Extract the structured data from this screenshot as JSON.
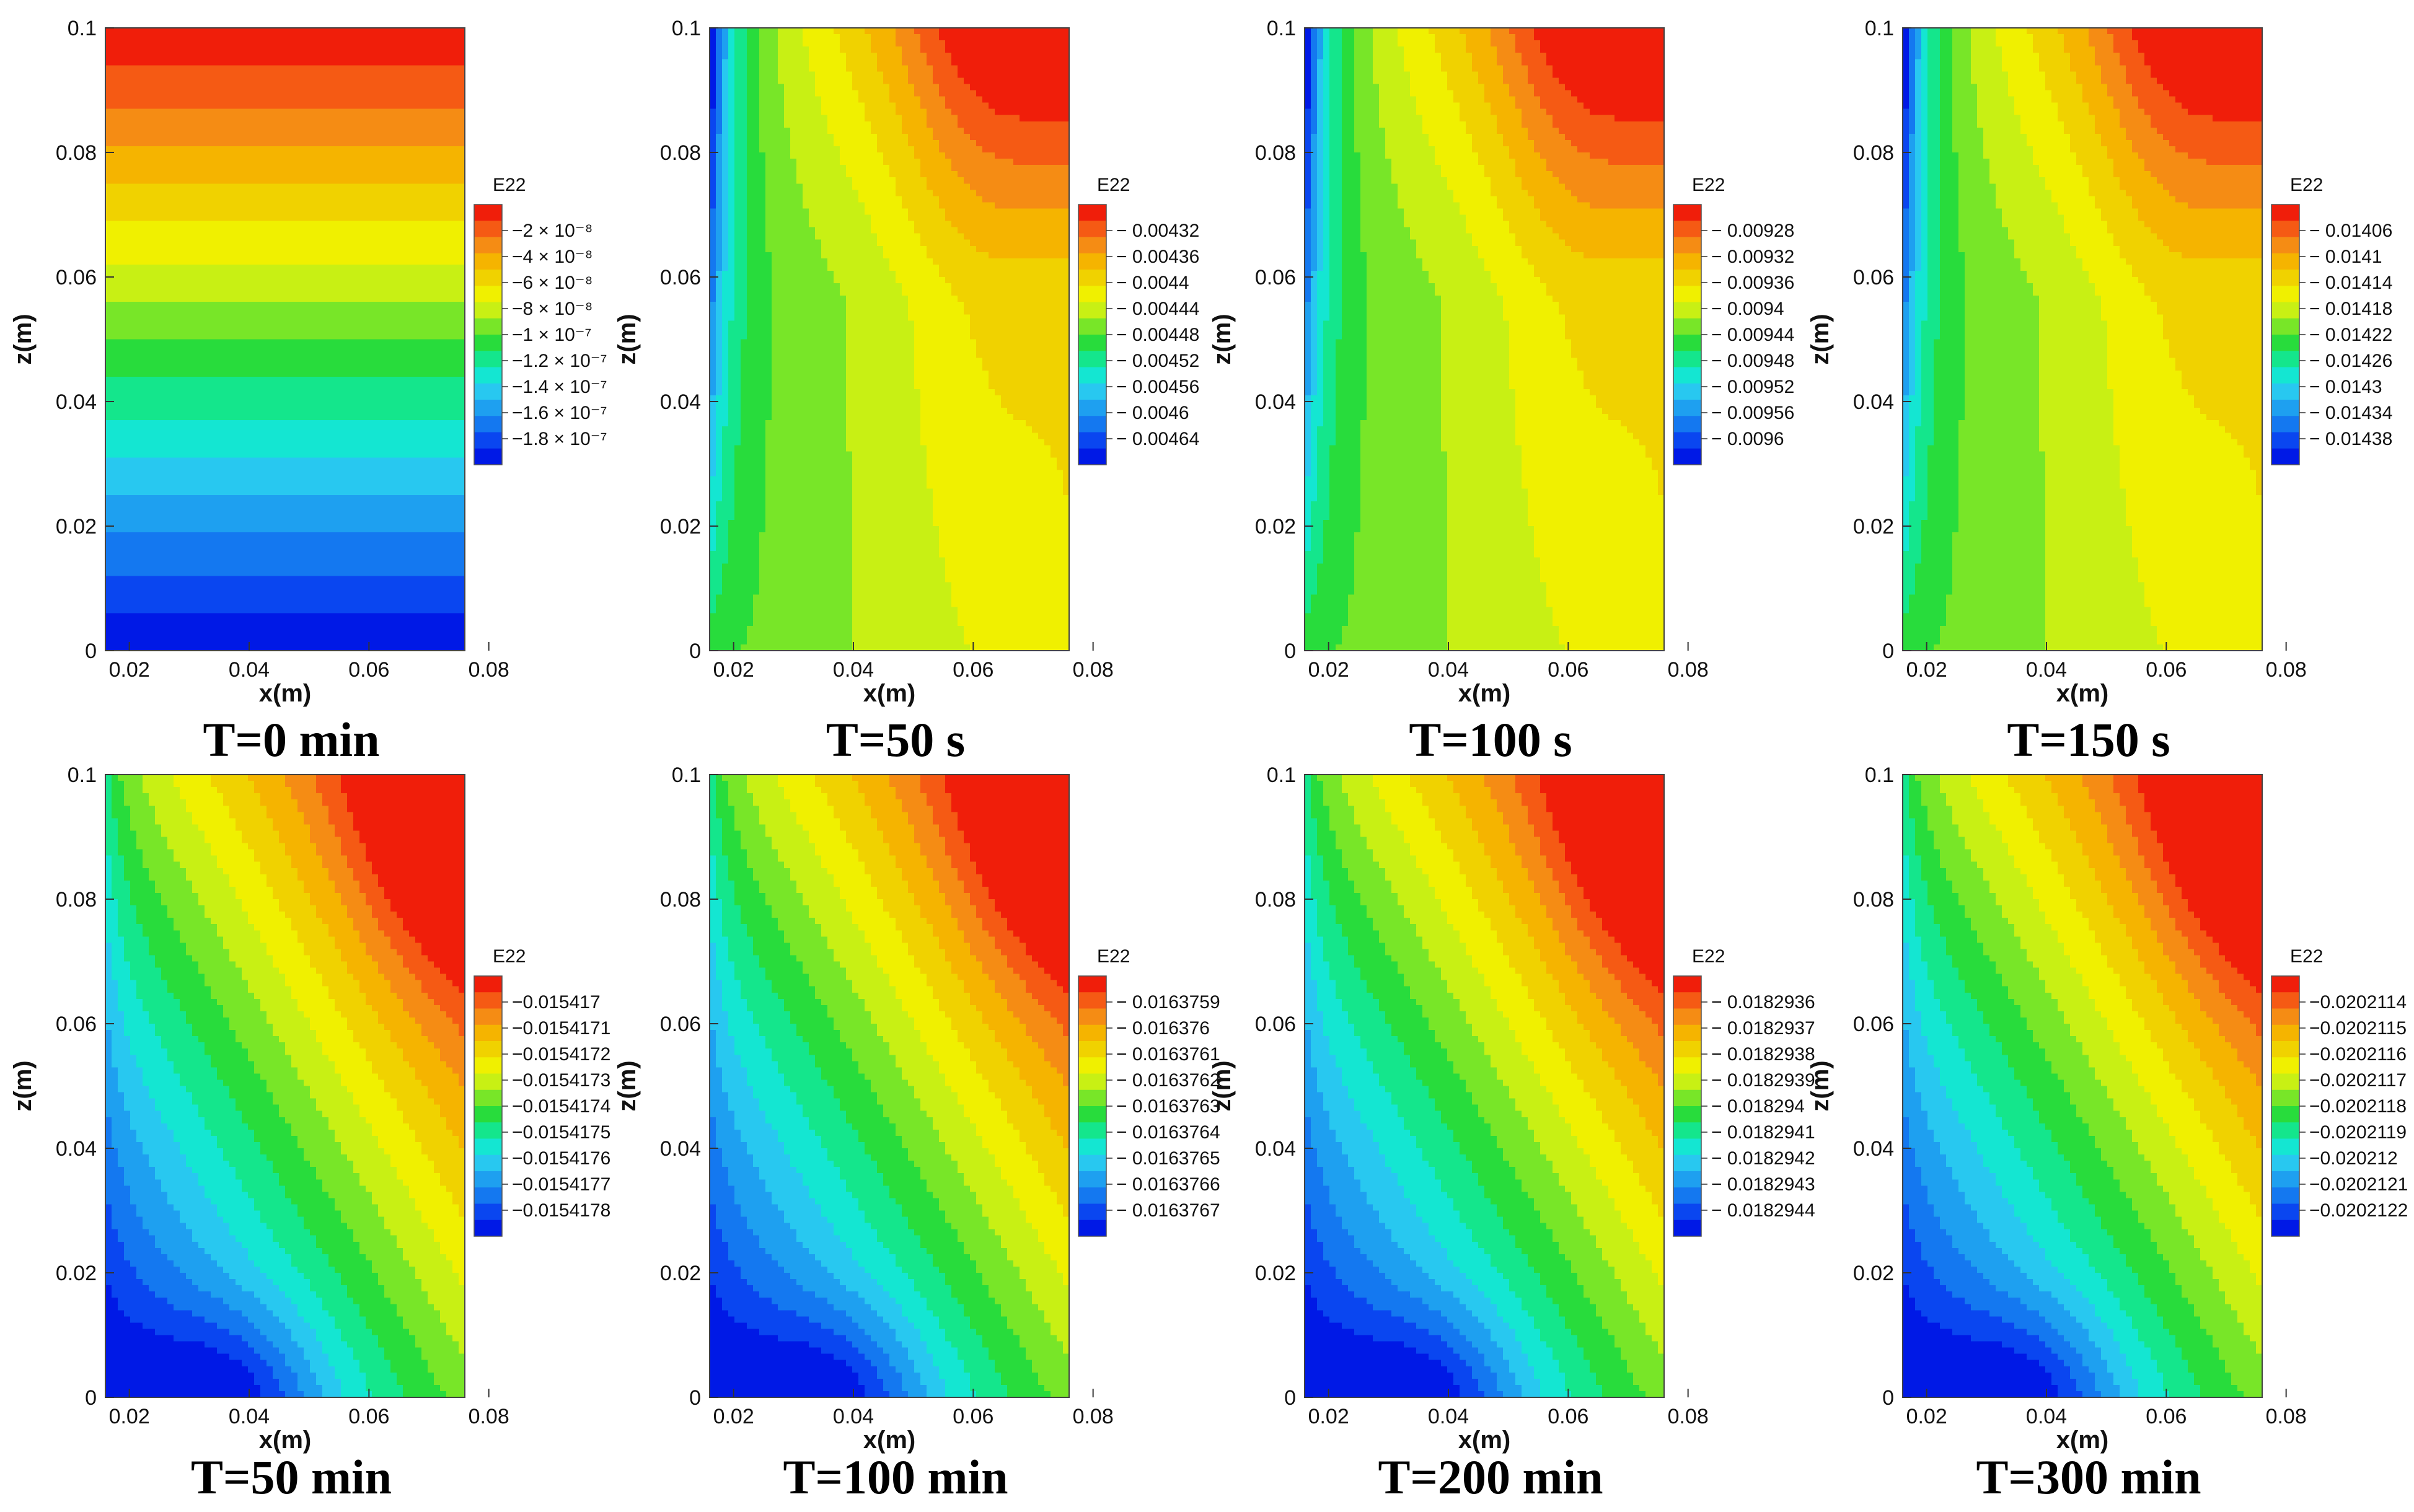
{
  "figure": {
    "layout": "2 rows x 4 columns of contour plots of E22"
  },
  "palette": [
    "#0019e6",
    "#0a46f0",
    "#1478f0",
    "#1ea0f0",
    "#28c8f0",
    "#14e6d2",
    "#14e68c",
    "#28dc3c",
    "#78e628",
    "#c8f014",
    "#f0f000",
    "#f0d200",
    "#f5b400",
    "#f58c14",
    "#f55a14",
    "#f01e0a"
  ],
  "chart_data": [
    {
      "type": "contour",
      "title": "T=0 min",
      "xlabel": "x(m)",
      "ylabel": "z(m)",
      "xlim": [
        0.016,
        0.076
      ],
      "ylim": [
        0,
        0.1
      ],
      "xticks": [
        "0.02",
        "0.04",
        "0.06",
        "0.08"
      ],
      "yticks": [
        "0",
        "0.02",
        "0.04",
        "0.06",
        "0.08",
        "0.1"
      ],
      "field": "linear-z",
      "colorbar": {
        "title": "E22",
        "tick_labels": [
          "−2 × 10⁻⁸",
          "−4 × 10⁻⁸",
          "−6 × 10⁻⁸",
          "−8 × 10⁻⁸",
          "−1 × 10⁻⁷",
          "−1.2 × 10⁻⁷",
          "−1.4 × 10⁻⁷",
          "−1.6 × 10⁻⁷",
          "−1.8 × 10⁻⁷"
        ]
      }
    },
    {
      "type": "contour",
      "title": "T=50 s",
      "xlabel": "x(m)",
      "ylabel": "z(m)",
      "xlim": [
        0.016,
        0.076
      ],
      "ylim": [
        0,
        0.1
      ],
      "xticks": [
        "0.02",
        "0.04",
        "0.06",
        "0.08"
      ],
      "yticks": [
        "0",
        "0.02",
        "0.04",
        "0.06",
        "0.08",
        "0.1"
      ],
      "field": "early",
      "colorbar": {
        "title": "E22",
        "tick_labels": [
          "− 0.00432",
          "− 0.00436",
          "− 0.0044",
          "− 0.00444",
          "− 0.00448",
          "− 0.00452",
          "− 0.00456",
          "− 0.0046",
          "− 0.00464"
        ]
      }
    },
    {
      "type": "contour",
      "title": "T=100 s",
      "xlabel": "x(m)",
      "ylabel": "z(m)",
      "xlim": [
        0.016,
        0.076
      ],
      "ylim": [
        0,
        0.1
      ],
      "xticks": [
        "0.02",
        "0.04",
        "0.06",
        "0.08"
      ],
      "yticks": [
        "0",
        "0.02",
        "0.04",
        "0.06",
        "0.08",
        "0.1"
      ],
      "field": "early",
      "colorbar": {
        "title": "E22",
        "tick_labels": [
          "− 0.00928",
          "− 0.00932",
          "− 0.00936",
          "− 0.0094",
          "− 0.00944",
          "− 0.00948",
          "− 0.00952",
          "− 0.00956",
          "− 0.0096"
        ]
      }
    },
    {
      "type": "contour",
      "title": "T=150 s",
      "xlabel": "x(m)",
      "ylabel": "z(m)",
      "xlim": [
        0.016,
        0.076
      ],
      "ylim": [
        0,
        0.1
      ],
      "xticks": [
        "0.02",
        "0.04",
        "0.06",
        "0.08"
      ],
      "yticks": [
        "0",
        "0.02",
        "0.04",
        "0.06",
        "0.08",
        "0.1"
      ],
      "field": "early",
      "colorbar": {
        "title": "E22",
        "tick_labels": [
          "− 0.01406",
          "− 0.0141",
          "− 0.01414",
          "− 0.01418",
          "− 0.01422",
          "− 0.01426",
          "− 0.0143",
          "− 0.01434",
          "− 0.01438"
        ]
      }
    },
    {
      "type": "contour",
      "title": "T=50 min",
      "xlabel": "x(m)",
      "ylabel": "z(m)",
      "xlim": [
        0.016,
        0.076
      ],
      "ylim": [
        0,
        0.1
      ],
      "xticks": [
        "0.02",
        "0.04",
        "0.06",
        "0.08"
      ],
      "yticks": [
        "0",
        "0.02",
        "0.04",
        "0.06",
        "0.08",
        "0.1"
      ],
      "field": "late",
      "colorbar": {
        "title": "E22",
        "tick_labels": [
          "−0.015417",
          "−0.0154171",
          "−0.0154172",
          "−0.0154173",
          "−0.0154174",
          "−0.0154175",
          "−0.0154176",
          "−0.0154177",
          "−0.0154178"
        ]
      }
    },
    {
      "type": "contour",
      "title": "T=100 min",
      "xlabel": "x(m)",
      "ylabel": "z(m)",
      "xlim": [
        0.016,
        0.076
      ],
      "ylim": [
        0,
        0.1
      ],
      "xticks": [
        "0.02",
        "0.04",
        "0.06",
        "0.08"
      ],
      "yticks": [
        "0",
        "0.02",
        "0.04",
        "0.06",
        "0.08",
        "0.1"
      ],
      "field": "late",
      "colorbar": {
        "title": "E22",
        "tick_labels": [
          "− 0.0163759",
          "− 0.016376",
          "− 0.0163761",
          "− 0.0163762",
          "− 0.0163763",
          "− 0.0163764",
          "− 0.0163765",
          "− 0.0163766",
          "− 0.0163767"
        ]
      }
    },
    {
      "type": "contour",
      "title": "T=200 min",
      "xlabel": "x(m)",
      "ylabel": "z(m)",
      "xlim": [
        0.016,
        0.076
      ],
      "ylim": [
        0,
        0.1
      ],
      "xticks": [
        "0.02",
        "0.04",
        "0.06",
        "0.08"
      ],
      "yticks": [
        "0",
        "0.02",
        "0.04",
        "0.06",
        "0.08",
        "0.1"
      ],
      "field": "late",
      "colorbar": {
        "title": "E22",
        "tick_labels": [
          "− 0.0182936",
          "− 0.0182937",
          "− 0.0182938",
          "− 0.0182939",
          "− 0.018294",
          "− 0.0182941",
          "− 0.0182942",
          "− 0.0182943",
          "− 0.0182944"
        ]
      }
    },
    {
      "type": "contour",
      "title": "T=300 min",
      "xlabel": "x(m)",
      "ylabel": "z(m)",
      "xlim": [
        0.016,
        0.076
      ],
      "ylim": [
        0,
        0.1
      ],
      "xticks": [
        "0.02",
        "0.04",
        "0.06",
        "0.08"
      ],
      "yticks": [
        "0",
        "0.02",
        "0.04",
        "0.06",
        "0.08",
        "0.1"
      ],
      "field": "late",
      "colorbar": {
        "title": "E22",
        "tick_labels": [
          "−0.0202114",
          "−0.0202115",
          "−0.0202116",
          "−0.0202117",
          "−0.0202118",
          "−0.0202119",
          "−0.020212",
          "−0.0202121",
          "−0.0202122"
        ]
      }
    }
  ]
}
